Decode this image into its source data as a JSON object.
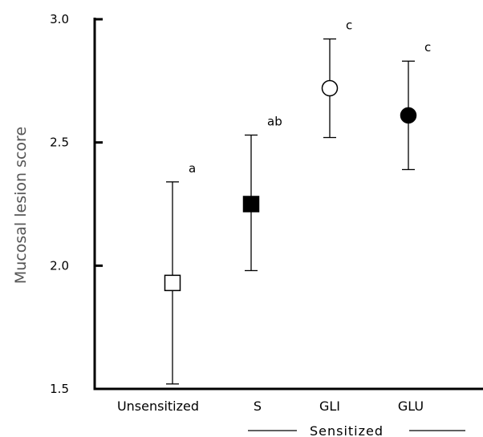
{
  "chart_data": {
    "type": "scatter",
    "title": "",
    "xlabel": "",
    "ylabel": "Mucosal lesion score",
    "ylim": [
      1.5,
      3.0
    ],
    "yticks": [
      "1.5",
      "2.0",
      "2.5",
      "3.0"
    ],
    "grid": false,
    "categories": [
      "Unsensitized",
      "S",
      "GLI",
      "GLU"
    ],
    "points": [
      {
        "category": "Unsensitized",
        "mean": 1.93,
        "upper": 2.34,
        "lower": 1.52,
        "marker": "open-square",
        "significance": "a"
      },
      {
        "category": "S",
        "mean": 2.25,
        "upper": 2.53,
        "lower": 1.98,
        "marker": "filled-square",
        "significance": "ab"
      },
      {
        "category": "GLI",
        "mean": 2.72,
        "upper": 2.92,
        "lower": 2.52,
        "marker": "open-circle",
        "significance": "c"
      },
      {
        "category": "GLU",
        "mean": 2.61,
        "upper": 2.83,
        "lower": 2.39,
        "marker": "filled-circle",
        "significance": "c"
      }
    ],
    "group_label": "Sensitized"
  }
}
